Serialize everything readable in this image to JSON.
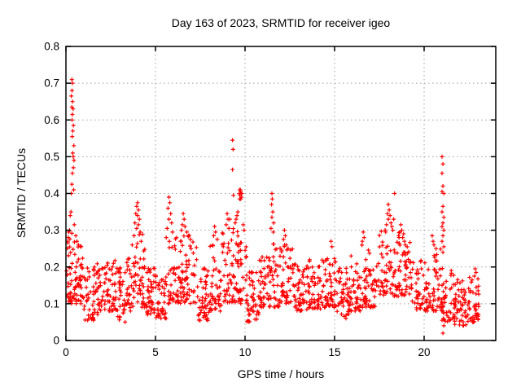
{
  "chart_data": {
    "type": "scatter",
    "title": "Day 163 of 2023, SRMTID for receiver igeo",
    "xlabel": "GPS time / hours",
    "ylabel": "SRMTID / TECUs",
    "xlim": [
      0,
      24
    ],
    "ylim": [
      0,
      0.8
    ],
    "xticks": [
      0,
      5,
      10,
      15,
      20
    ],
    "xtick_labels": [
      "0",
      "5",
      "10",
      "15",
      "20"
    ],
    "yticks": [
      0,
      0.1,
      0.2,
      0.3,
      0.4,
      0.5,
      0.6,
      0.7,
      0.8
    ],
    "ytick_labels": [
      "0",
      "0.1",
      "0.2",
      "0.3",
      "0.4",
      "0.5",
      "0.6",
      "0.7",
      "0.8"
    ],
    "grid": true,
    "legend": null,
    "marker": {
      "shape": "plus",
      "color": "#ff0000",
      "size": 5
    },
    "grid_color": "#a0a0a0",
    "axis_color": "#000000",
    "background_color": "#ffffff",
    "data_x_range": [
      0.03,
      23.05
    ],
    "points_extreme": [
      [
        0.33,
        0.71
      ],
      [
        0.36,
        0.7
      ],
      [
        0.34,
        0.68
      ],
      [
        0.3,
        0.665
      ],
      [
        0.37,
        0.65
      ],
      [
        0.33,
        0.635
      ],
      [
        0.4,
        0.63
      ],
      [
        0.36,
        0.615
      ],
      [
        0.34,
        0.6
      ],
      [
        0.42,
        0.585
      ],
      [
        0.38,
        0.57
      ],
      [
        0.35,
        0.555
      ],
      [
        0.44,
        0.53
      ],
      [
        0.38,
        0.51
      ],
      [
        0.41,
        0.5
      ],
      [
        0.45,
        0.49
      ],
      [
        0.42,
        0.47
      ],
      [
        0.36,
        0.455
      ],
      [
        0.33,
        0.425
      ],
      [
        0.43,
        0.41
      ],
      [
        0.3,
        0.4
      ],
      [
        0.28,
        0.35
      ],
      [
        0.24,
        0.34
      ],
      [
        0.47,
        0.315
      ],
      [
        0.2,
        0.3
      ],
      [
        0.55,
        0.285
      ],
      [
        0.15,
        0.295
      ],
      [
        0.62,
        0.27
      ],
      [
        0.7,
        0.26
      ],
      [
        0.1,
        0.27
      ],
      [
        0.85,
        0.255
      ],
      [
        4.0,
        0.375
      ],
      [
        3.95,
        0.365
      ],
      [
        4.05,
        0.355
      ],
      [
        3.9,
        0.345
      ],
      [
        4.0,
        0.34
      ],
      [
        4.1,
        0.33
      ],
      [
        3.85,
        0.32
      ],
      [
        4.05,
        0.315
      ],
      [
        3.95,
        0.305
      ],
      [
        4.15,
        0.295
      ],
      [
        3.8,
        0.285
      ],
      [
        4.2,
        0.27
      ],
      [
        3.7,
        0.26
      ],
      [
        5.75,
        0.39
      ],
      [
        5.8,
        0.375
      ],
      [
        5.7,
        0.36
      ],
      [
        5.85,
        0.345
      ],
      [
        5.75,
        0.33
      ],
      [
        5.9,
        0.32
      ],
      [
        5.65,
        0.305
      ],
      [
        5.95,
        0.295
      ],
      [
        5.6,
        0.28
      ],
      [
        6.55,
        0.345
      ],
      [
        6.6,
        0.33
      ],
      [
        6.5,
        0.315
      ],
      [
        6.65,
        0.31
      ],
      [
        6.45,
        0.3
      ],
      [
        6.75,
        0.295
      ],
      [
        6.85,
        0.285
      ],
      [
        6.95,
        0.275
      ],
      [
        6.4,
        0.27
      ],
      [
        8.3,
        0.31
      ],
      [
        8.35,
        0.295
      ],
      [
        8.25,
        0.285
      ],
      [
        8.45,
        0.275
      ],
      [
        9.0,
        0.345
      ],
      [
        9.05,
        0.33
      ],
      [
        8.95,
        0.315
      ],
      [
        9.1,
        0.305
      ],
      [
        9.15,
        0.33
      ],
      [
        9.3,
        0.545
      ],
      [
        9.33,
        0.52
      ],
      [
        9.3,
        0.465
      ],
      [
        9.35,
        0.395
      ],
      [
        9.7,
        0.41
      ],
      [
        9.75,
        0.405
      ],
      [
        9.68,
        0.4
      ],
      [
        9.78,
        0.4
      ],
      [
        9.72,
        0.395
      ],
      [
        9.8,
        0.39
      ],
      [
        9.7,
        0.385
      ],
      [
        9.76,
        0.385
      ],
      [
        9.82,
        0.4
      ],
      [
        9.74,
        0.41
      ],
      [
        9.6,
        0.35
      ],
      [
        9.55,
        0.34
      ],
      [
        9.5,
        0.33
      ],
      [
        9.9,
        0.315
      ],
      [
        9.95,
        0.3
      ],
      [
        9.45,
        0.32
      ],
      [
        11.5,
        0.4
      ],
      [
        11.52,
        0.385
      ],
      [
        11.48,
        0.37
      ],
      [
        11.55,
        0.35
      ],
      [
        11.5,
        0.335
      ],
      [
        11.6,
        0.32
      ],
      [
        11.45,
        0.305
      ],
      [
        11.58,
        0.295
      ],
      [
        12.2,
        0.3
      ],
      [
        12.25,
        0.285
      ],
      [
        12.15,
        0.275
      ],
      [
        12.3,
        0.26
      ],
      [
        12.4,
        0.25
      ],
      [
        14.8,
        0.27
      ],
      [
        14.85,
        0.255
      ],
      [
        16.6,
        0.295
      ],
      [
        16.65,
        0.28
      ],
      [
        16.55,
        0.27
      ],
      [
        18.35,
        0.4
      ],
      [
        18.0,
        0.37
      ],
      [
        18.05,
        0.355
      ],
      [
        17.95,
        0.345
      ],
      [
        18.1,
        0.34
      ],
      [
        18.0,
        0.33
      ],
      [
        18.15,
        0.32
      ],
      [
        17.9,
        0.315
      ],
      [
        18.2,
        0.31
      ],
      [
        18.25,
        0.3
      ],
      [
        17.85,
        0.295
      ],
      [
        18.3,
        0.33
      ],
      [
        18.7,
        0.315
      ],
      [
        18.75,
        0.3
      ],
      [
        18.65,
        0.295
      ],
      [
        18.85,
        0.29
      ],
      [
        18.8,
        0.28
      ],
      [
        18.9,
        0.27
      ],
      [
        18.6,
        0.28
      ],
      [
        18.95,
        0.26
      ],
      [
        20.45,
        0.285
      ],
      [
        20.5,
        0.27
      ],
      [
        20.55,
        0.26
      ],
      [
        21.0,
        0.5
      ],
      [
        21.05,
        0.48
      ],
      [
        21.0,
        0.455
      ],
      [
        21.05,
        0.42
      ],
      [
        21.0,
        0.405
      ],
      [
        21.1,
        0.4
      ],
      [
        21.05,
        0.365
      ],
      [
        21.0,
        0.35
      ],
      [
        21.1,
        0.335
      ],
      [
        21.05,
        0.32
      ],
      [
        21.0,
        0.31
      ],
      [
        21.1,
        0.3
      ],
      [
        21.05,
        0.285
      ],
      [
        21.0,
        0.27
      ],
      [
        21.1,
        0.255
      ],
      [
        21.05,
        0.24
      ],
      [
        21.0,
        0.15
      ],
      [
        21.1,
        0.115
      ],
      [
        21.05,
        0.08
      ],
      [
        21.0,
        0.055
      ],
      [
        21.1,
        0.04
      ],
      [
        21.05,
        0.02
      ],
      [
        22.85,
        0.195
      ],
      [
        22.9,
        0.185
      ],
      [
        22.8,
        0.175
      ]
    ],
    "band_columns": [
      "x0",
      "x1",
      "count",
      "ymin",
      "ymax",
      "skew"
    ],
    "dense_band_model": [
      [
        0.03,
        0.5,
        40,
        0.1,
        0.3,
        1.6
      ],
      [
        0.5,
        1.0,
        38,
        0.1,
        0.26,
        1.5
      ],
      [
        1.0,
        1.6,
        40,
        0.055,
        0.2,
        1.4
      ],
      [
        1.6,
        2.2,
        40,
        0.07,
        0.21,
        1.4
      ],
      [
        2.2,
        2.8,
        40,
        0.08,
        0.22,
        1.5
      ],
      [
        2.8,
        3.4,
        38,
        0.05,
        0.2,
        1.4
      ],
      [
        3.4,
        3.9,
        34,
        0.08,
        0.25,
        1.5
      ],
      [
        3.9,
        4.4,
        36,
        0.09,
        0.3,
        1.5
      ],
      [
        4.4,
        5.0,
        42,
        0.07,
        0.2,
        1.4
      ],
      [
        5.0,
        5.6,
        40,
        0.06,
        0.185,
        1.3
      ],
      [
        5.6,
        6.3,
        45,
        0.1,
        0.28,
        1.5
      ],
      [
        6.3,
        7.3,
        65,
        0.1,
        0.29,
        1.5
      ],
      [
        7.3,
        8.0,
        46,
        0.05,
        0.2,
        1.4
      ],
      [
        8.0,
        8.7,
        46,
        0.08,
        0.26,
        1.5
      ],
      [
        8.7,
        9.4,
        44,
        0.1,
        0.31,
        1.4
      ],
      [
        9.4,
        10.1,
        48,
        0.1,
        0.3,
        1.3
      ],
      [
        10.1,
        10.8,
        45,
        0.05,
        0.19,
        1.4
      ],
      [
        10.8,
        11.4,
        42,
        0.09,
        0.235,
        1.5
      ],
      [
        11.4,
        12.1,
        44,
        0.09,
        0.27,
        1.5
      ],
      [
        12.1,
        12.7,
        40,
        0.1,
        0.26,
        1.5
      ],
      [
        12.7,
        13.5,
        52,
        0.08,
        0.21,
        1.4
      ],
      [
        13.5,
        14.3,
        52,
        0.085,
        0.22,
        1.4
      ],
      [
        14.3,
        15.1,
        52,
        0.09,
        0.23,
        1.4
      ],
      [
        15.1,
        15.8,
        45,
        0.06,
        0.2,
        1.4
      ],
      [
        15.8,
        16.5,
        46,
        0.08,
        0.235,
        1.5
      ],
      [
        16.5,
        17.4,
        55,
        0.09,
        0.26,
        1.5
      ],
      [
        17.4,
        18.5,
        62,
        0.12,
        0.31,
        1.5
      ],
      [
        18.5,
        19.3,
        52,
        0.12,
        0.3,
        1.3
      ],
      [
        19.3,
        20.3,
        58,
        0.08,
        0.22,
        1.4
      ],
      [
        20.3,
        21.0,
        44,
        0.08,
        0.25,
        1.5
      ],
      [
        21.0,
        21.7,
        40,
        0.045,
        0.2,
        1.4
      ],
      [
        21.7,
        22.5,
        52,
        0.04,
        0.17,
        1.3
      ],
      [
        22.5,
        23.05,
        40,
        0.05,
        0.185,
        1.3
      ]
    ],
    "seed": 163
  }
}
